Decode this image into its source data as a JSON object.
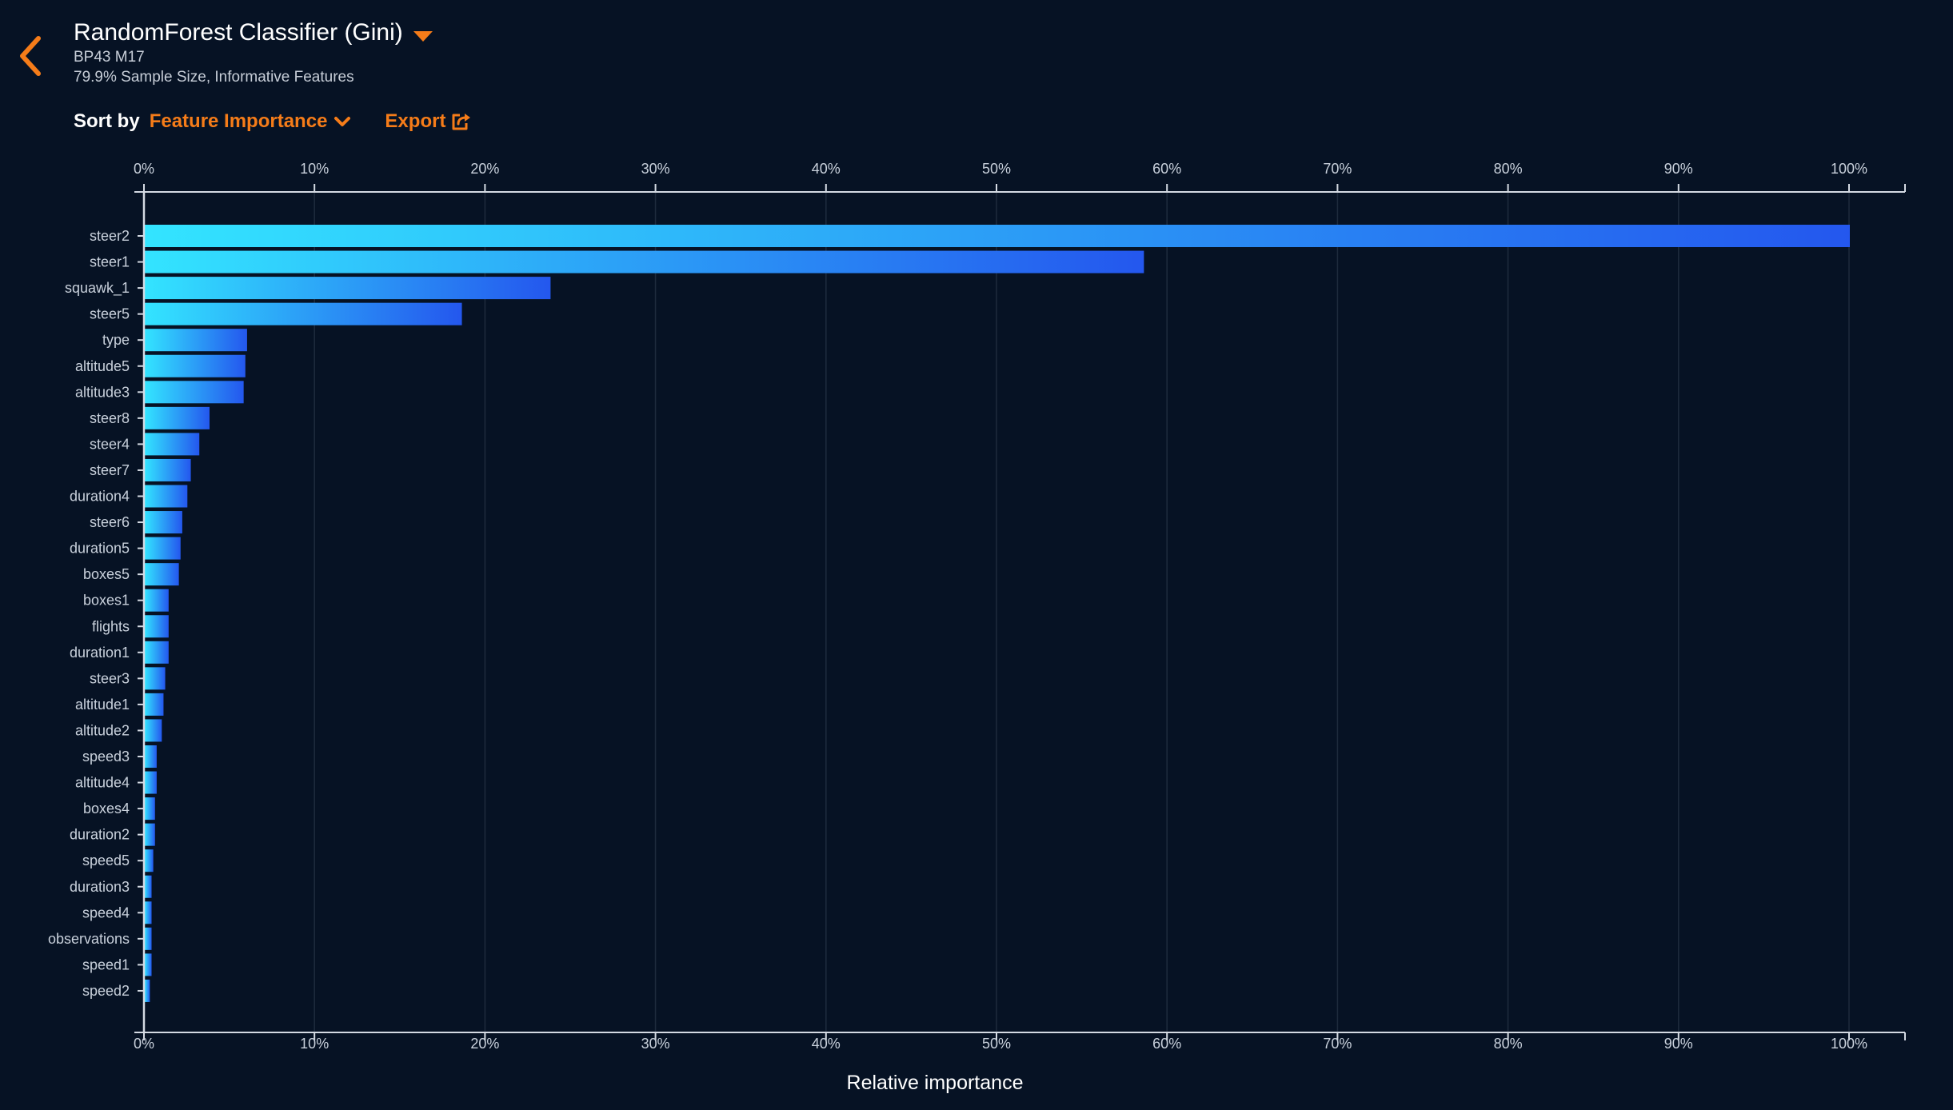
{
  "header": {
    "title": "RandomForest Classifier (Gini)",
    "line1": "BP43 M17",
    "line2": "79.9% Sample Size, Informative Features"
  },
  "toolbar": {
    "sort_label": "Sort by",
    "sort_value": "Feature Importance",
    "export_label": "Export"
  },
  "icons": {
    "back": "chevron-left-icon",
    "model_menu": "caret-down-icon",
    "sort_menu": "chevron-down-icon",
    "export": "share-icon"
  },
  "colors": {
    "background": "#061224",
    "accent": "#f57c19",
    "bar_start": "#33e4ff",
    "bar_end": "#2457ee"
  },
  "chart_data": {
    "type": "bar",
    "orientation": "horizontal",
    "xlabel": "Relative importance",
    "xlim": [
      0,
      100
    ],
    "x_ticks": [
      "0%",
      "10%",
      "20%",
      "30%",
      "40%",
      "50%",
      "60%",
      "70%",
      "80%",
      "90%",
      "100%"
    ],
    "grid": true,
    "categories": [
      "steer2",
      "steer1",
      "squawk_1",
      "steer5",
      "type",
      "altitude5",
      "altitude3",
      "steer8",
      "steer4",
      "steer7",
      "duration4",
      "steer6",
      "duration5",
      "boxes5",
      "boxes1",
      "flights",
      "duration1",
      "steer3",
      "altitude1",
      "altitude2",
      "speed3",
      "altitude4",
      "boxes4",
      "duration2",
      "speed5",
      "duration3",
      "speed4",
      "observations",
      "speed1",
      "speed2"
    ],
    "values": [
      100,
      58.6,
      23.8,
      18.6,
      6.0,
      5.9,
      5.8,
      3.8,
      3.2,
      2.7,
      2.5,
      2.2,
      2.1,
      2.0,
      1.4,
      1.4,
      1.4,
      1.2,
      1.1,
      1.0,
      0.7,
      0.7,
      0.6,
      0.6,
      0.5,
      0.4,
      0.4,
      0.4,
      0.4,
      0.3
    ]
  }
}
